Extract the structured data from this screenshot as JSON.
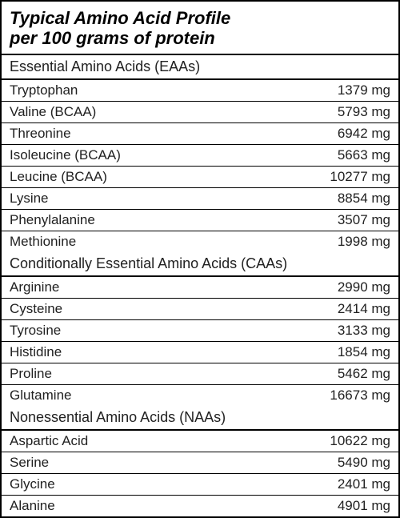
{
  "title_line1": "Typical Amino Acid Profile",
  "title_line2": "per 100 grams of protein",
  "unit": "mg",
  "colors": {
    "border": "#000000",
    "text": "#212121",
    "background": "#ffffff"
  },
  "typography": {
    "title_fontsize_pt": 17,
    "title_weight": "700",
    "title_style": "italic",
    "body_fontsize_pt": 13,
    "font_family": "Arial"
  },
  "sections": [
    {
      "header": "Essential Amino Acids (EAAs)",
      "rows": [
        {
          "name": "Tryptophan",
          "value": "1379 mg"
        },
        {
          "name": "Valine (BCAA)",
          "value": "5793 mg"
        },
        {
          "name": "Threonine",
          "value": "6942 mg"
        },
        {
          "name": "Isoleucine (BCAA)",
          "value": "5663 mg"
        },
        {
          "name": "Leucine (BCAA)",
          "value": "10277 mg"
        },
        {
          "name": "Lysine",
          "value": "8854 mg"
        },
        {
          "name": "Phenylalanine",
          "value": "3507 mg"
        },
        {
          "name": "Methionine",
          "value": "1998 mg"
        }
      ]
    },
    {
      "header": "Conditionally Essential Amino Acids (CAAs)",
      "rows": [
        {
          "name": "Arginine",
          "value": "2990 mg"
        },
        {
          "name": "Cysteine",
          "value": "2414 mg"
        },
        {
          "name": "Tyrosine",
          "value": "3133 mg"
        },
        {
          "name": "Histidine",
          "value": "1854 mg"
        },
        {
          "name": "Proline",
          "value": "5462 mg"
        },
        {
          "name": "Glutamine",
          "value": "16673 mg"
        }
      ]
    },
    {
      "header": "Nonessential Amino Acids (NAAs)",
      "rows": [
        {
          "name": "Aspartic Acid",
          "value": "10622 mg"
        },
        {
          "name": "Serine",
          "value": "5490 mg"
        },
        {
          "name": "Glycine",
          "value": "2401 mg"
        },
        {
          "name": "Alanine",
          "value": "4901 mg"
        }
      ]
    }
  ]
}
